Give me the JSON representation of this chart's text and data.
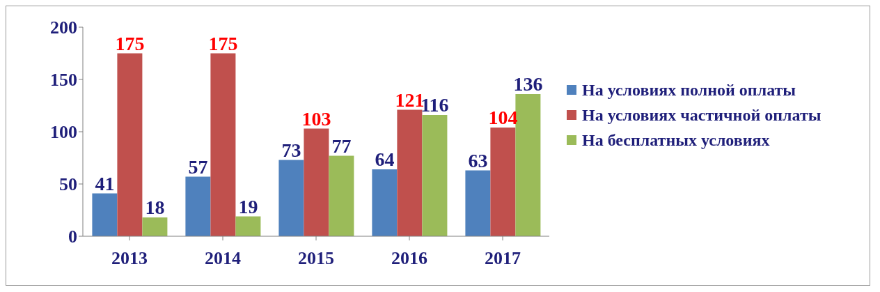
{
  "chart_data": {
    "type": "bar",
    "categories": [
      "2013",
      "2014",
      "2015",
      "2016",
      "2017"
    ],
    "series": [
      {
        "name": "На условиях полной оплаты",
        "color": "#4f81bd",
        "values": [
          41,
          57,
          73,
          64,
          63
        ]
      },
      {
        "name": "На условиях частичной оплаты",
        "color": "#c0504d",
        "values": [
          175,
          175,
          103,
          121,
          104
        ]
      },
      {
        "name": "На бесплатных условиях",
        "color": "#9bbb59",
        "values": [
          18,
          19,
          77,
          116,
          136
        ]
      }
    ],
    "ylim": [
      0,
      200
    ],
    "yticks": [
      0,
      50,
      100,
      150,
      200
    ],
    "grid": false,
    "legend": "right",
    "data_labels": true
  }
}
